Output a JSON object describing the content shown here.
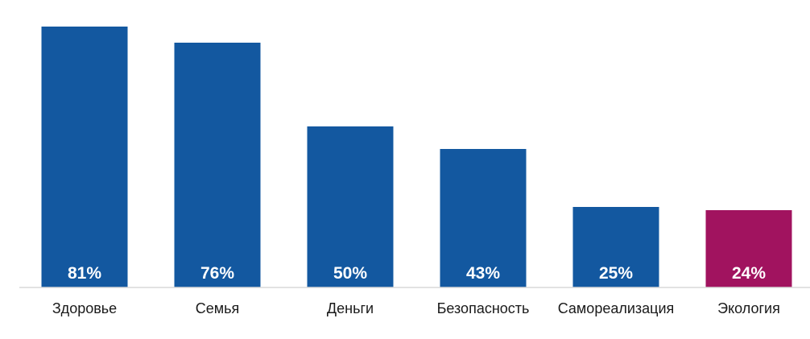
{
  "chart_data": {
    "type": "bar",
    "categories": [
      "Здоровье",
      "Семья",
      "Деньги",
      "Безопасность",
      "Самореализация",
      "Экология"
    ],
    "values": [
      81,
      76,
      50,
      43,
      25,
      24
    ],
    "value_labels": [
      "81%",
      "76%",
      "50%",
      "43%",
      "25%",
      "24%"
    ],
    "colors": [
      "#1358a0",
      "#1358a0",
      "#1358a0",
      "#1358a0",
      "#1358a0",
      "#a1135f"
    ],
    "title": "",
    "xlabel": "",
    "ylabel": "",
    "ylim": [
      0,
      81
    ],
    "grid": false,
    "legend": "none"
  }
}
